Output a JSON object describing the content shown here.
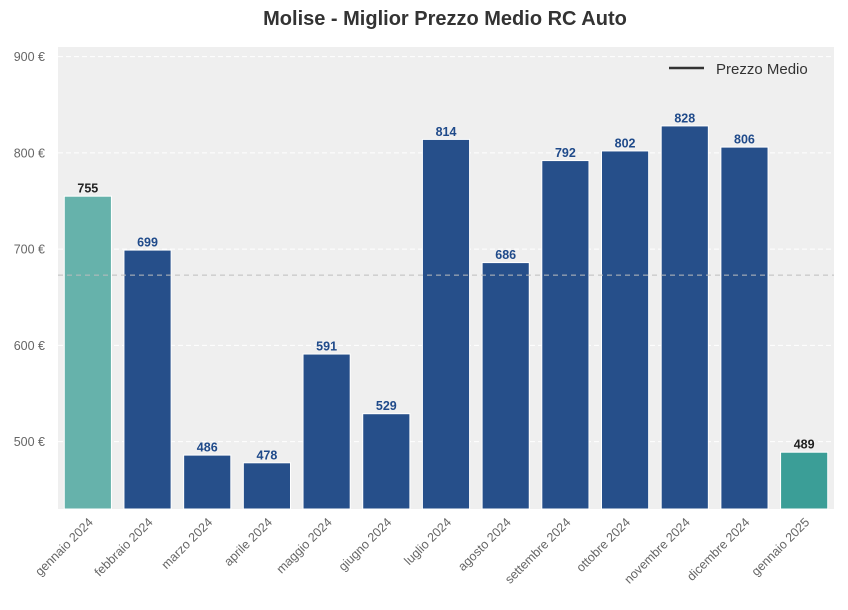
{
  "chart_data": {
    "type": "bar",
    "title": "Molise - Miglior Prezzo Medio RC Auto",
    "xlabel": "",
    "ylabel": "",
    "categories": [
      "gennaio 2024",
      "febbraio 2024",
      "marzo 2024",
      "aprile 2024",
      "maggio 2024",
      "giugno 2024",
      "luglio 2024",
      "agosto 2024",
      "settembre 2024",
      "ottobre 2024",
      "novembre 2024",
      "dicembre 2024",
      "gennaio 2025"
    ],
    "values": [
      755,
      699,
      486,
      478,
      591,
      529,
      814,
      686,
      792,
      802,
      828,
      806,
      489
    ],
    "value_labels": [
      "755",
      "699",
      "486",
      "478",
      "591",
      "529",
      "814",
      "686",
      "792",
      "802",
      "828",
      "806",
      "489"
    ],
    "bar_colors": [
      "#66b2ab",
      "#264f8a",
      "#264f8a",
      "#264f8a",
      "#264f8a",
      "#264f8a",
      "#264f8a",
      "#264f8a",
      "#264f8a",
      "#264f8a",
      "#264f8a",
      "#264f8a",
      "#3b9e97"
    ],
    "label_colors": [
      "#222222",
      "#1f4a8a",
      "#1f4a8a",
      "#1f4a8a",
      "#1f4a8a",
      "#1f4a8a",
      "#1f4a8a",
      "#1f4a8a",
      "#1f4a8a",
      "#1f4a8a",
      "#1f4a8a",
      "#1f4a8a",
      "#222222"
    ],
    "ylim": [
      430,
      910
    ],
    "yticks": [
      500,
      600,
      700,
      800,
      900
    ],
    "ytick_labels": [
      "500 €",
      "600 €",
      "700 €",
      "800 €",
      "900 €"
    ],
    "average_line": 673,
    "legend": {
      "entries": [
        "Prezzo Medio"
      ],
      "position": "top-right"
    },
    "grid": true,
    "background": "#efefef"
  }
}
